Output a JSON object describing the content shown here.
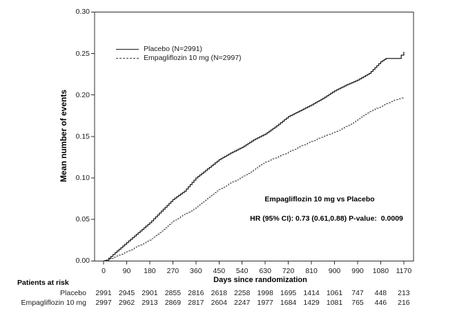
{
  "figure": {
    "background": "#ffffff",
    "line_color": "#000000",
    "text_color": "#000000"
  },
  "legend": {
    "items": [
      {
        "label": "Placebo (N=2991)",
        "line_style": "solid"
      },
      {
        "label": "Empagliflozin 10 mg (N=2997)",
        "line_style": "dashed"
      }
    ]
  },
  "annotation": {
    "title": "Empagliflozin 10 mg vs Placebo",
    "stats": "HR (95% CI): 0.73 (0.61,0.88) P-value:  0.0009"
  },
  "chart_data": {
    "type": "line",
    "title": "",
    "xlabel": "Days since randomization",
    "ylabel": "Mean number of events",
    "xlim": [
      -35,
      1208
    ],
    "ylim": [
      0,
      0.3
    ],
    "grid": false,
    "legend_position": "upper-left-inside",
    "x_ticks": [
      0,
      90,
      180,
      270,
      360,
      450,
      540,
      630,
      720,
      810,
      900,
      990,
      1080,
      1170
    ],
    "x_tick_labels": [
      "0",
      "90",
      "180",
      "270",
      "360",
      "450",
      "540",
      "630",
      "720",
      "810",
      "900",
      "990",
      "1080",
      "1170"
    ],
    "y_ticks": [
      0.0,
      0.05,
      0.1,
      0.15,
      0.2,
      0.25,
      0.3
    ],
    "y_tick_labels": [
      "0.00",
      "0.05",
      "0.10",
      "0.15",
      "0.20",
      "0.25",
      "0.30"
    ],
    "series": [
      {
        "name": "Placebo (N=2991)",
        "style": "solid",
        "x": [
          0,
          12,
          45,
          90,
          135,
          180,
          225,
          270,
          315,
          360,
          405,
          450,
          495,
          540,
          585,
          630,
          675,
          720,
          765,
          810,
          855,
          900,
          945,
          990,
          1035,
          1080,
          1100,
          1150,
          1160,
          1170
        ],
        "y": [
          0,
          0.001,
          0.01,
          0.022,
          0.034,
          0.046,
          0.06,
          0.074,
          0.084,
          0.1,
          0.111,
          0.122,
          0.13,
          0.137,
          0.146,
          0.153,
          0.163,
          0.174,
          0.181,
          0.188,
          0.196,
          0.205,
          0.212,
          0.218,
          0.226,
          0.24,
          0.244,
          0.244,
          0.248,
          0.252
        ]
      },
      {
        "name": "Empagliflozin 10 mg (N=2997)",
        "style": "dashed",
        "x": [
          0,
          15,
          45,
          90,
          135,
          180,
          225,
          270,
          315,
          360,
          405,
          450,
          495,
          540,
          585,
          630,
          675,
          720,
          765,
          810,
          855,
          900,
          945,
          990,
          1035,
          1080,
          1125,
          1170
        ],
        "y": [
          0,
          0.001,
          0.005,
          0.011,
          0.018,
          0.025,
          0.036,
          0.048,
          0.056,
          0.064,
          0.075,
          0.086,
          0.094,
          0.101,
          0.11,
          0.119,
          0.125,
          0.131,
          0.138,
          0.144,
          0.15,
          0.155,
          0.162,
          0.17,
          0.18,
          0.186,
          0.193,
          0.197
        ]
      }
    ]
  },
  "risk_table": {
    "header": "Patients at risk",
    "rows": [
      {
        "label": "Placebo",
        "counts": [
          "2991",
          "2945",
          "2901",
          "2855",
          "2816",
          "2618",
          "2258",
          "1998",
          "1695",
          "1414",
          "1061",
          "747",
          "448",
          "213"
        ]
      },
      {
        "label": "Empagliflozin 10 mg",
        "counts": [
          "2997",
          "2962",
          "2913",
          "2869",
          "2817",
          "2604",
          "2247",
          "1977",
          "1684",
          "1429",
          "1081",
          "765",
          "446",
          "216"
        ]
      }
    ]
  }
}
